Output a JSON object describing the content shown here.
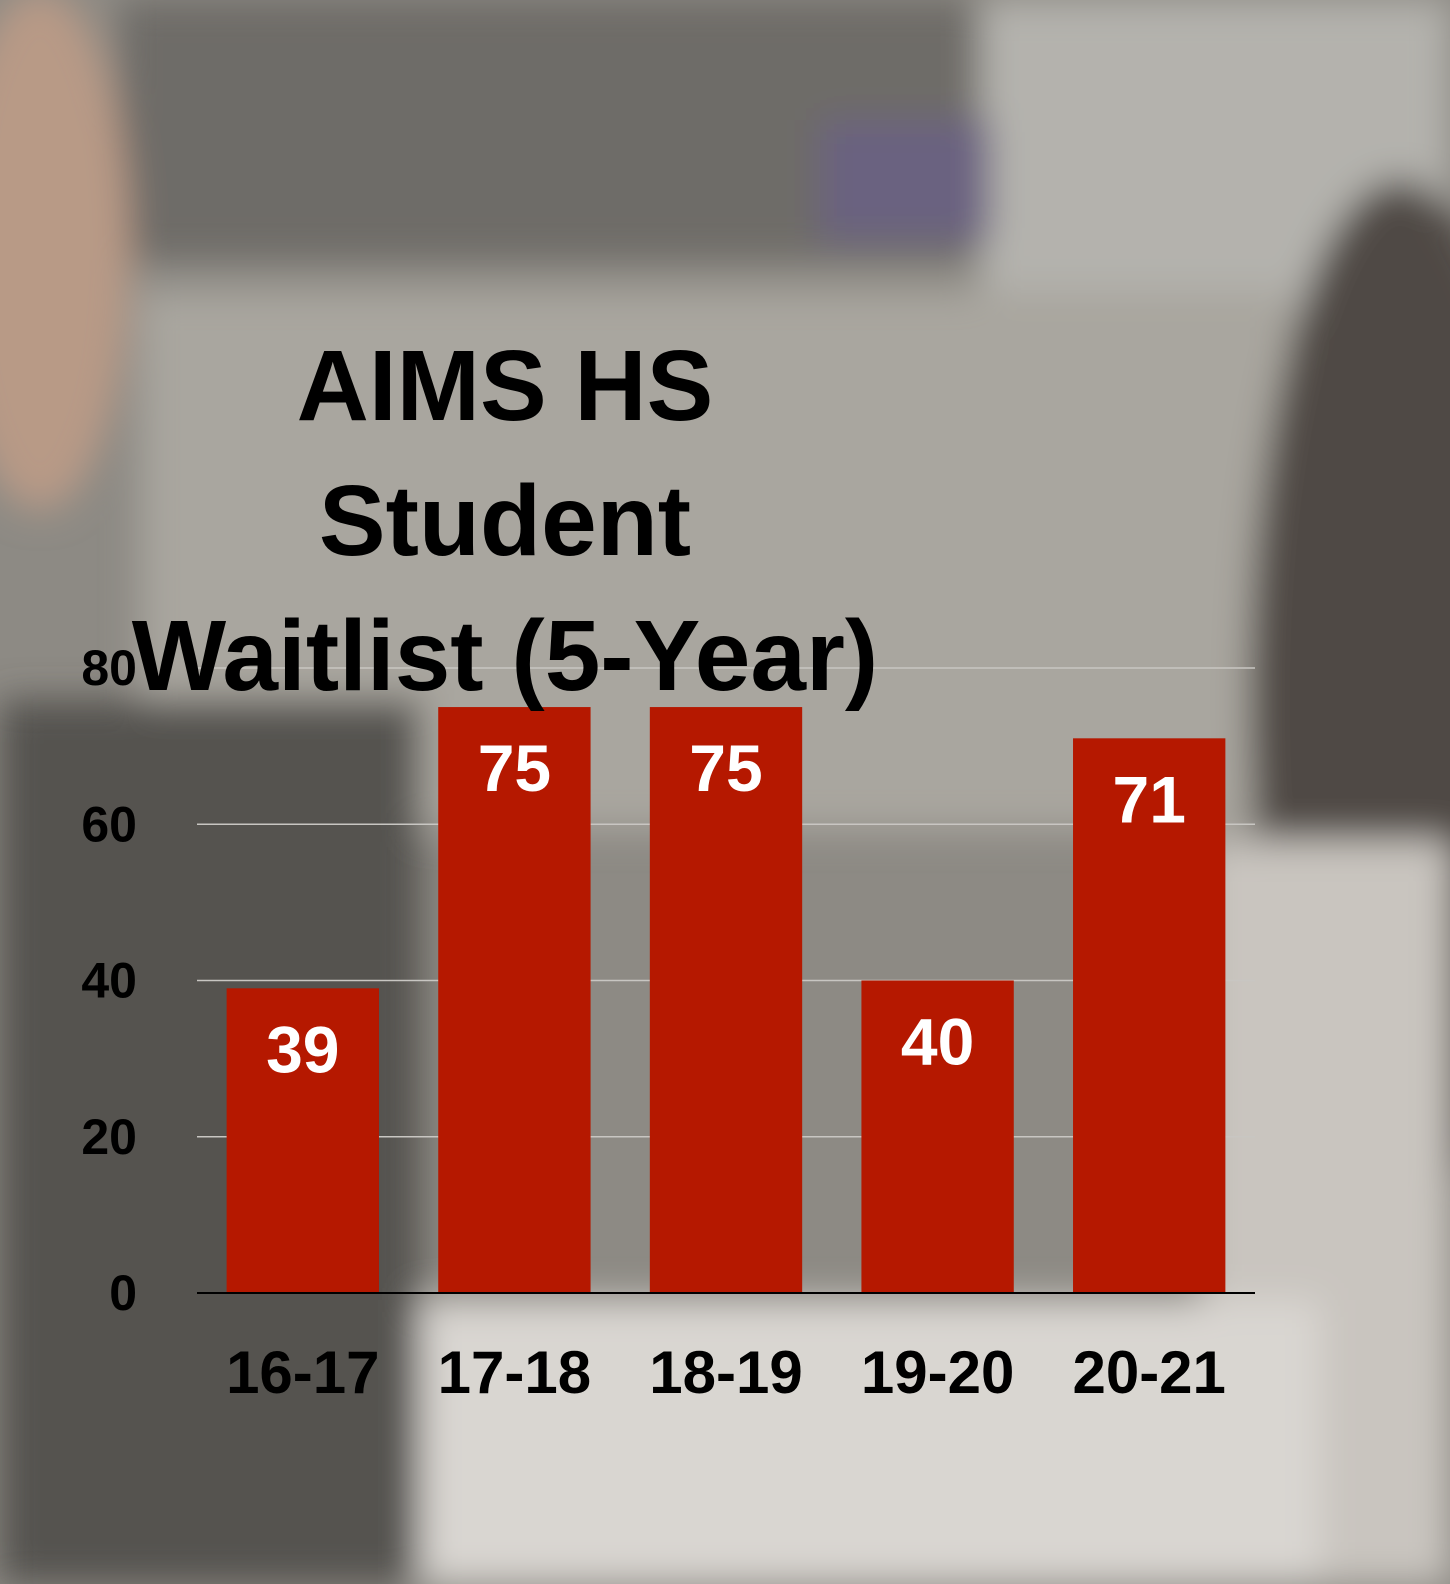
{
  "chart_data": {
    "type": "bar",
    "title": [
      "AIMS HS",
      "Student",
      "Waitlist (5-Year)"
    ],
    "categories": [
      "16-17",
      "17-18",
      "18-19",
      "19-20",
      "20-21"
    ],
    "values": [
      39,
      75,
      75,
      40,
      71
    ],
    "color": "#b51800",
    "ylim": [
      0,
      80
    ],
    "yticks": [
      0,
      20,
      40,
      60,
      80
    ],
    "grid": true
  }
}
